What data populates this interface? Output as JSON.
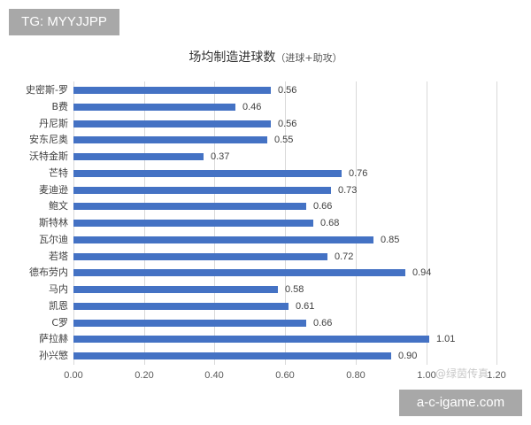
{
  "badge": {
    "text": "TG: MYYJJPP"
  },
  "footer": {
    "site": "a-c-igame.com",
    "watermark": "@绿茵传真"
  },
  "chart_data": {
    "type": "bar",
    "orientation": "horizontal",
    "title": "场均制造进球数",
    "subtitle": "（进球+助攻）",
    "xlabel": "",
    "ylabel": "",
    "xlim": [
      0,
      1.2
    ],
    "x_ticks": [
      "0.00",
      "0.20",
      "0.40",
      "0.60",
      "0.80",
      "1.00",
      "1.20"
    ],
    "grid": true,
    "legend": null,
    "bar_color": "#4472c4",
    "categories": [
      "史密斯-罗",
      "B费",
      "丹尼斯",
      "安东尼奥",
      "沃特金斯",
      "芒特",
      "麦迪逊",
      "鲍文",
      "斯特林",
      "瓦尔迪",
      "若塔",
      "德布劳内",
      "马内",
      "凯恩",
      "C罗",
      "萨拉赫",
      "孙兴慜"
    ],
    "values": [
      0.56,
      0.46,
      0.56,
      0.55,
      0.37,
      0.76,
      0.73,
      0.66,
      0.68,
      0.85,
      0.72,
      0.94,
      0.58,
      0.61,
      0.66,
      1.01,
      0.9
    ],
    "value_labels": [
      "0.56",
      "0.46",
      "0.56",
      "0.55",
      "0.37",
      "0.76",
      "0.73",
      "0.66",
      "0.68",
      "0.85",
      "0.72",
      "0.94",
      "0.58",
      "0.61",
      "0.66",
      "1.01",
      "0.90"
    ]
  }
}
